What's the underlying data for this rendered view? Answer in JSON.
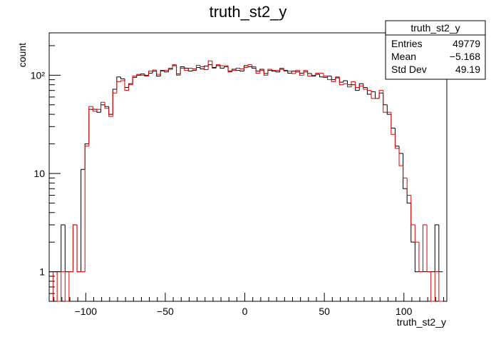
{
  "chart_data": {
    "type": "histogram",
    "title": "truth_st2_y",
    "xlabel": "truth_st2_y",
    "ylabel": "count",
    "yscale": "log",
    "xlim": [
      -123,
      127
    ],
    "ylim": [
      0.5,
      270
    ],
    "x_ticks": [
      -100,
      -50,
      0,
      50,
      100
    ],
    "x_tick_labels": [
      "−100",
      "−50",
      "0",
      "50",
      "100"
    ],
    "y_ticks": [
      1,
      10,
      100
    ],
    "y_tick_labels": [
      "1",
      "10",
      "10²"
    ],
    "grid": false,
    "stats_box": {
      "title": "truth_st2_y",
      "rows": [
        {
          "label": "Entries",
          "value": "49779"
        },
        {
          "label": "Mean",
          "value": "−5.168"
        },
        {
          "label": "Std Dev",
          "value": "49.19"
        }
      ]
    },
    "bin_width": 2.5,
    "series": [
      {
        "color": "#000000",
        "bins": [
          [
            -123,
            1
          ],
          [
            -120.5,
            1
          ],
          [
            -118,
            1
          ],
          [
            -115.5,
            3
          ],
          [
            -113,
            1
          ],
          [
            -110.5,
            1
          ],
          [
            -108,
            3
          ],
          [
            -105.5,
            1
          ],
          [
            -103,
            11
          ],
          [
            -100.5,
            20
          ],
          [
            -98,
            45
          ],
          [
            -95.5,
            45
          ],
          [
            -93,
            42
          ],
          [
            -90.5,
            50
          ],
          [
            -88,
            48
          ],
          [
            -85.5,
            40
          ],
          [
            -83,
            72
          ],
          [
            -80.5,
            96
          ],
          [
            -78,
            92
          ],
          [
            -75.5,
            75
          ],
          [
            -73,
            82
          ],
          [
            -70.5,
            95
          ],
          [
            -68,
            100
          ],
          [
            -65.5,
            103
          ],
          [
            -63,
            100
          ],
          [
            -60.5,
            105
          ],
          [
            -58,
            110
          ],
          [
            -55.5,
            98
          ],
          [
            -53,
            112
          ],
          [
            -50.5,
            108
          ],
          [
            -48,
            115
          ],
          [
            -45.5,
            125
          ],
          [
            -43,
            103
          ],
          [
            -40.5,
            122
          ],
          [
            -38,
            118
          ],
          [
            -35.5,
            110
          ],
          [
            -33,
            112
          ],
          [
            -30.5,
            120
          ],
          [
            -28,
            116
          ],
          [
            -25.5,
            124
          ],
          [
            -23,
            128
          ],
          [
            -20.5,
            120
          ],
          [
            -18,
            125
          ],
          [
            -15.5,
            118
          ],
          [
            -13,
            122
          ],
          [
            -10.5,
            110
          ],
          [
            -8,
            115
          ],
          [
            -5.5,
            112
          ],
          [
            -3,
            110
          ],
          [
            -0.5,
            125
          ],
          [
            2,
            122
          ],
          [
            4.5,
            118
          ],
          [
            7,
            110
          ],
          [
            9.5,
            115
          ],
          [
            12,
            104
          ],
          [
            14.5,
            112
          ],
          [
            17,
            110
          ],
          [
            19.5,
            108
          ],
          [
            22,
            115
          ],
          [
            24.5,
            112
          ],
          [
            27,
            105
          ],
          [
            29.5,
            110
          ],
          [
            32,
            108
          ],
          [
            34.5,
            105
          ],
          [
            37,
            108
          ],
          [
            39.5,
            104
          ],
          [
            42,
            98
          ],
          [
            44.5,
            102
          ],
          [
            47,
            96
          ],
          [
            49.5,
            95
          ],
          [
            52,
            98
          ],
          [
            54.5,
            90
          ],
          [
            57,
            94
          ],
          [
            59.5,
            85
          ],
          [
            62,
            88
          ],
          [
            64.5,
            80
          ],
          [
            67,
            80
          ],
          [
            69.5,
            70
          ],
          [
            72,
            82
          ],
          [
            74.5,
            75
          ],
          [
            77,
            64
          ],
          [
            79.5,
            68
          ],
          [
            82,
            58
          ],
          [
            84.5,
            66
          ],
          [
            87,
            50
          ],
          [
            89.5,
            40
          ],
          [
            92,
            29
          ],
          [
            94.5,
            19
          ],
          [
            97,
            16
          ],
          [
            99.5,
            7
          ],
          [
            102,
            5
          ],
          [
            104.5,
            2
          ],
          [
            107,
            1
          ],
          [
            109.5,
            1
          ],
          [
            112,
            1
          ],
          [
            114.5,
            1
          ],
          [
            117,
            1
          ],
          [
            119.5,
            3
          ],
          [
            122,
            1
          ]
        ]
      },
      {
        "color": "#e00000",
        "bins": [
          [
            -123,
            0
          ],
          [
            -120.5,
            1
          ],
          [
            -118,
            0
          ],
          [
            -115.5,
            1
          ],
          [
            -113,
            0
          ],
          [
            -110.5,
            1
          ],
          [
            -108,
            3
          ],
          [
            -105.5,
            1
          ],
          [
            -103,
            1
          ],
          [
            -100.5,
            19
          ],
          [
            -98,
            48
          ],
          [
            -95.5,
            43
          ],
          [
            -93,
            45
          ],
          [
            -90.5,
            53
          ],
          [
            -88,
            46
          ],
          [
            -85.5,
            38
          ],
          [
            -83,
            66
          ],
          [
            -80.5,
            86
          ],
          [
            -78,
            88
          ],
          [
            -75.5,
            70
          ],
          [
            -73,
            80
          ],
          [
            -70.5,
            98
          ],
          [
            -68,
            102
          ],
          [
            -65.5,
            100
          ],
          [
            -63,
            98
          ],
          [
            -60.5,
            110
          ],
          [
            -58,
            113
          ],
          [
            -55.5,
            102
          ],
          [
            -53,
            110
          ],
          [
            -50.5,
            112
          ],
          [
            -48,
            118
          ],
          [
            -45.5,
            128
          ],
          [
            -43,
            100
          ],
          [
            -40.5,
            118
          ],
          [
            -38,
            112
          ],
          [
            -35.5,
            118
          ],
          [
            -33,
            116
          ],
          [
            -30.5,
            126
          ],
          [
            -28,
            122
          ],
          [
            -25.5,
            114
          ],
          [
            -23,
            140
          ],
          [
            -20.5,
            118
          ],
          [
            -18,
            128
          ],
          [
            -15.5,
            125
          ],
          [
            -13,
            125
          ],
          [
            -10.5,
            108
          ],
          [
            -8,
            112
          ],
          [
            -5.5,
            118
          ],
          [
            -3,
            116
          ],
          [
            -0.5,
            120
          ],
          [
            2,
            128
          ],
          [
            4.5,
            122
          ],
          [
            7,
            105
          ],
          [
            9.5,
            112
          ],
          [
            12,
            100
          ],
          [
            14.5,
            115
          ],
          [
            17,
            112
          ],
          [
            19.5,
            112
          ],
          [
            22,
            118
          ],
          [
            24.5,
            110
          ],
          [
            27,
            110
          ],
          [
            29.5,
            104
          ],
          [
            32,
            112
          ],
          [
            34.5,
            100
          ],
          [
            37,
            112
          ],
          [
            39.5,
            98
          ],
          [
            42,
            100
          ],
          [
            44.5,
            105
          ],
          [
            47,
            105
          ],
          [
            49.5,
            98
          ],
          [
            52,
            90
          ],
          [
            54.5,
            86
          ],
          [
            57,
            96
          ],
          [
            59.5,
            80
          ],
          [
            62,
            82
          ],
          [
            64.5,
            76
          ],
          [
            67,
            86
          ],
          [
            69.5,
            75
          ],
          [
            72,
            78
          ],
          [
            74.5,
            72
          ],
          [
            77,
            70
          ],
          [
            79.5,
            58
          ],
          [
            82,
            58
          ],
          [
            84.5,
            70
          ],
          [
            87,
            42
          ],
          [
            89.5,
            42
          ],
          [
            92,
            25
          ],
          [
            94.5,
            18
          ],
          [
            97,
            12
          ],
          [
            99.5,
            9
          ],
          [
            102,
            6
          ],
          [
            104.5,
            3
          ],
          [
            107,
            2
          ],
          [
            109.5,
            1
          ],
          [
            112,
            3
          ],
          [
            114.5,
            1
          ],
          [
            117,
            0
          ],
          [
            119.5,
            1
          ],
          [
            122,
            0
          ]
        ]
      }
    ]
  }
}
